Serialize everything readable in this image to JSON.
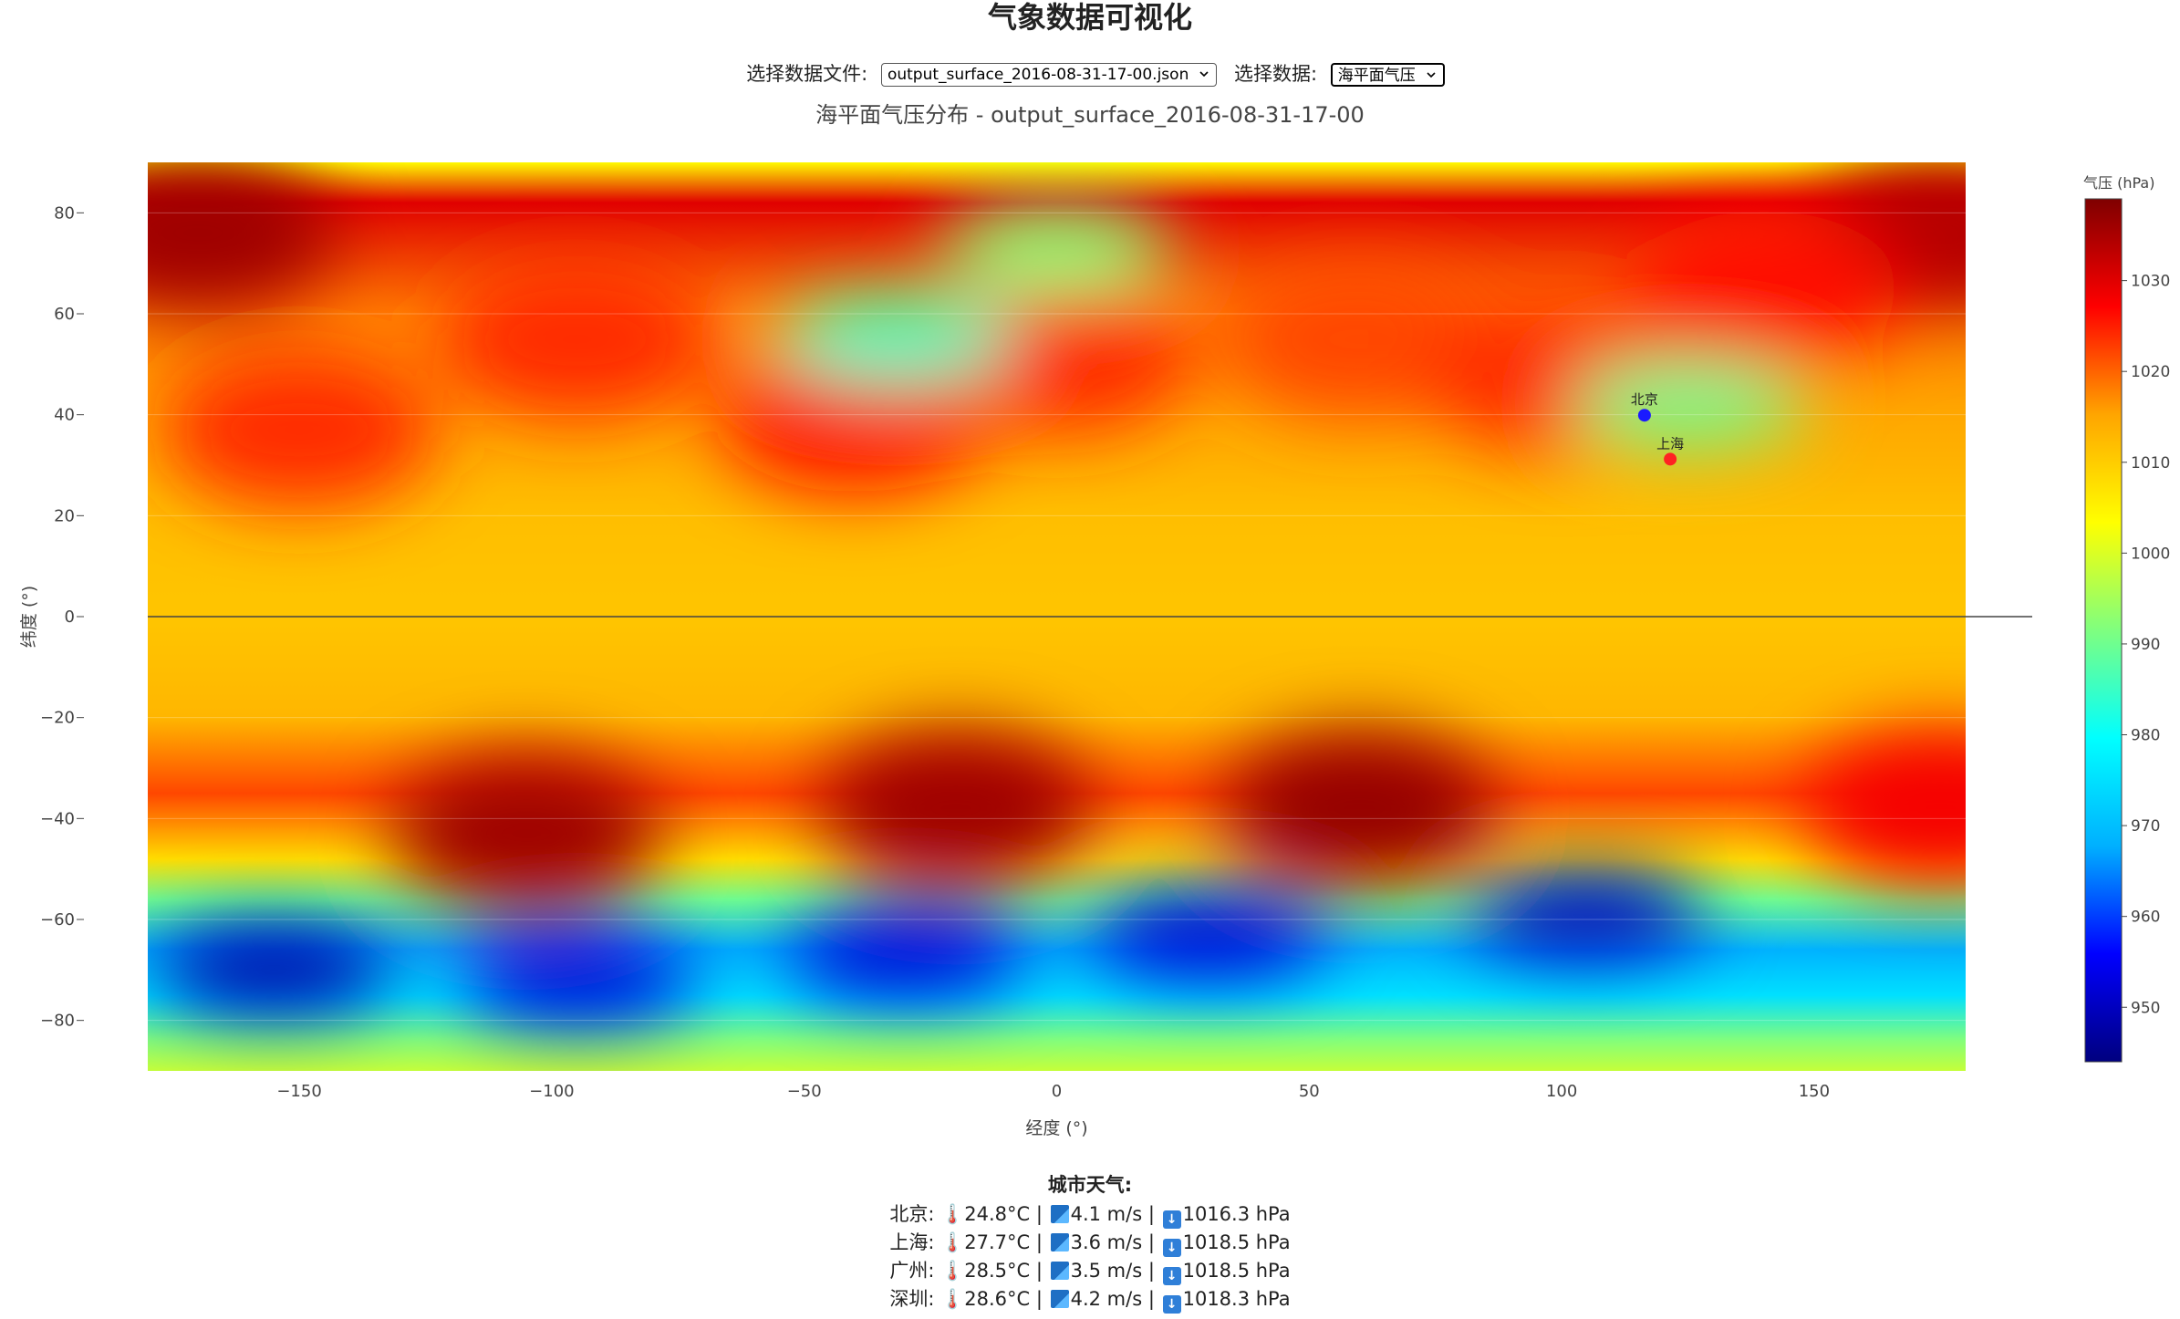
{
  "app": {
    "title": "气象数据可视化"
  },
  "controls": {
    "file_label": "选择数据文件:",
    "file_value": "output_surface_2016-08-31-17-00.json",
    "data_label": "选择数据:",
    "data_value": "海平面气压"
  },
  "colors": {
    "colorscale": [
      "#00007f",
      "#0000ff",
      "#00b0ff",
      "#00ffff",
      "#7fff7f",
      "#ffff00",
      "#ffa500",
      "#ff0000",
      "#7f0000"
    ],
    "beijing_marker": "#1a1aff",
    "shanghai_marker": "#ff2222"
  },
  "chart_data": {
    "type": "heatmap",
    "title": "海平面气压分布 - output_surface_2016-08-31-17-00",
    "xlabel": "经度 (°)",
    "ylabel": "纬度 (°)",
    "xlim": [
      -180,
      180
    ],
    "ylim": [
      -90,
      90
    ],
    "x_ticks": [
      -150,
      -100,
      -50,
      0,
      50,
      100,
      150
    ],
    "y_ticks": [
      80,
      60,
      40,
      20,
      0,
      -20,
      -40,
      -60,
      -80
    ],
    "colorbar": {
      "title": "气压 (hPa)",
      "range": [
        944,
        1039
      ],
      "ticks": [
        1030,
        1020,
        1010,
        1000,
        990,
        980,
        970,
        960,
        950
      ]
    },
    "markers": [
      {
        "name": "北京",
        "lon": 116.4,
        "lat": 39.9
      },
      {
        "name": "上海",
        "lon": 121.5,
        "lat": 31.2
      }
    ],
    "high_centers": [
      {
        "lon": -170,
        "lat": 76,
        "value": 1036
      },
      {
        "lon": 175,
        "lat": 76,
        "value": 1034
      },
      {
        "lon": -150,
        "lat": 37,
        "value": 1024
      },
      {
        "lon": -95,
        "lat": 55,
        "value": 1024
      },
      {
        "lon": -40,
        "lat": 40,
        "value": 1026
      },
      {
        "lon": 0,
        "lat": 52,
        "value": 1024
      },
      {
        "lon": 60,
        "lat": 55,
        "value": 1022
      },
      {
        "lon": 100,
        "lat": 48,
        "value": 1024
      },
      {
        "lon": 140,
        "lat": 65,
        "value": 1026
      },
      {
        "lon": -105,
        "lat": -43,
        "value": 1036
      },
      {
        "lon": -20,
        "lat": -38,
        "value": 1036
      },
      {
        "lon": 60,
        "lat": -38,
        "value": 1037
      },
      {
        "lon": 175,
        "lat": -38,
        "value": 1028
      }
    ],
    "low_centers": [
      {
        "lon": -155,
        "lat": -70,
        "value": 948
      },
      {
        "lon": -95,
        "lat": -72,
        "value": 952
      },
      {
        "lon": -30,
        "lat": -67,
        "value": 952
      },
      {
        "lon": 30,
        "lat": -63,
        "value": 952
      },
      {
        "lon": 105,
        "lat": -59,
        "value": 950
      },
      {
        "lon": -32,
        "lat": 55,
        "value": 985
      },
      {
        "lon": 0,
        "lat": 73,
        "value": 992
      },
      {
        "lon": 125,
        "lat": 42,
        "value": 990
      }
    ]
  },
  "cities": {
    "title": "城市天气:",
    "items": [
      {
        "name": "北京:",
        "temp": "24.8°C",
        "wind": "4.1 m/s",
        "pressure": "1016.3 hPa"
      },
      {
        "name": "上海:",
        "temp": "27.7°C",
        "wind": "3.6 m/s",
        "pressure": "1018.5 hPa"
      },
      {
        "name": "广州:",
        "temp": "28.5°C",
        "wind": "3.5 m/s",
        "pressure": "1018.5 hPa"
      },
      {
        "name": "深圳:",
        "temp": "28.6°C",
        "wind": "4.2 m/s",
        "pressure": "1018.3 hPa"
      }
    ]
  }
}
